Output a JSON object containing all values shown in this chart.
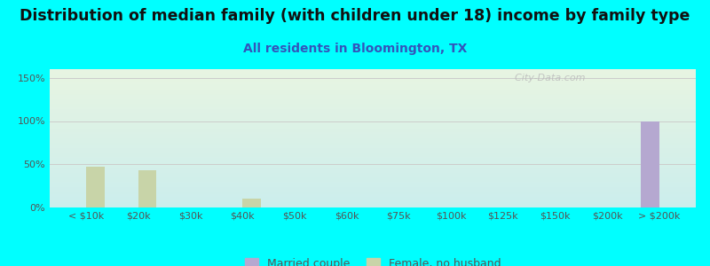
{
  "title": "Distribution of median family (with children under 18) income by family type",
  "subtitle": "All residents in Bloomington, TX",
  "categories": [
    "< $10k",
    "$20k",
    "$30k",
    "$40k",
    "$50k",
    "$60k",
    "$75k",
    "$100k",
    "$125k",
    "$150k",
    "$200k",
    "> $200k"
  ],
  "married_couple": [
    0,
    0,
    0,
    0,
    0,
    0,
    0,
    0,
    0,
    0,
    0,
    100
  ],
  "female_no_husband": [
    47,
    43,
    0,
    10,
    0,
    0,
    0,
    0,
    0,
    0,
    0,
    0
  ],
  "married_color": "#b5a8d0",
  "female_color": "#c8d4a8",
  "bar_width": 0.35,
  "ylim": [
    0,
    160
  ],
  "yticks": [
    0,
    50,
    100,
    150
  ],
  "ytick_labels": [
    "0%",
    "50%",
    "100%",
    "150%"
  ],
  "background_outer": "#00ffff",
  "background_inner_top": "#cceeed",
  "background_inner_bottom": "#e8f5e2",
  "grid_color": "#cccccc",
  "title_fontsize": 12.5,
  "subtitle_fontsize": 10,
  "tick_fontsize": 8,
  "legend_fontsize": 9,
  "watermark_text": "  City-Data.com",
  "xlim_left": -0.7,
  "xlim_right": 11.7
}
